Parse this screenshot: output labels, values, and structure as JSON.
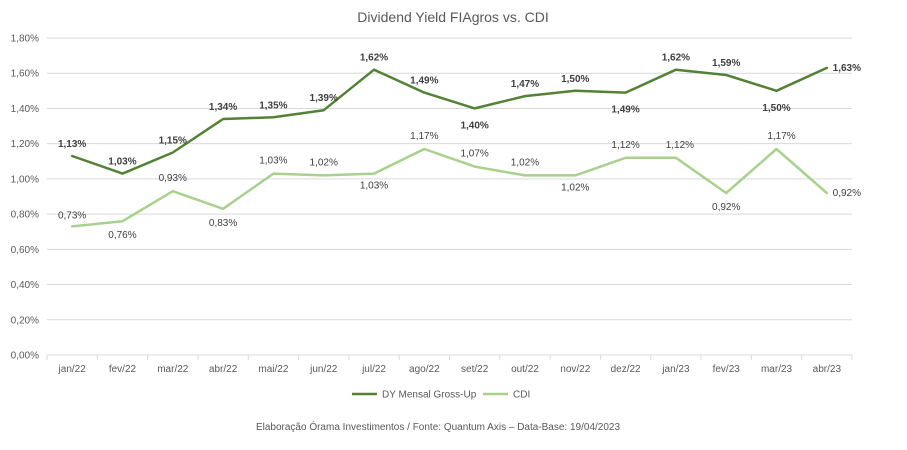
{
  "chart_data": {
    "type": "line",
    "title": "Dividend Yield FIAgros vs. CDI",
    "categories": [
      "jan/22",
      "fev/22",
      "mar/22",
      "abr/22",
      "mai/22",
      "jun/22",
      "jul/22",
      "ago/22",
      "set/22",
      "out/22",
      "nov/22",
      "dez/22",
      "jan/23",
      "fev/23",
      "mar/23",
      "abr/23"
    ],
    "y_ticks": [
      "0,00%",
      "0,20%",
      "0,40%",
      "0,60%",
      "0,80%",
      "1,00%",
      "1,20%",
      "1,40%",
      "1,60%",
      "1,80%"
    ],
    "ylim": [
      0,
      1.8
    ],
    "grid": true,
    "legend_position": "bottom",
    "series": [
      {
        "name": "DY Mensal Gross-Up",
        "color": "#548235",
        "values": [
          1.13,
          1.03,
          1.15,
          1.34,
          1.35,
          1.39,
          1.62,
          1.49,
          1.4,
          1.47,
          1.5,
          1.49,
          1.62,
          1.59,
          1.5,
          1.63
        ],
        "labels": [
          "1,13%",
          "1,03%",
          "1,15%",
          "1,34%",
          "1,35%",
          "1,39%",
          "1,62%",
          "1,49%",
          "1,40%",
          "1,47%",
          "1,50%",
          "1,49%",
          "1,62%",
          "1,59%",
          "1,50%",
          "1,63%"
        ]
      },
      {
        "name": "CDI",
        "color": "#a9d18e",
        "values": [
          0.73,
          0.76,
          0.93,
          0.83,
          1.03,
          1.02,
          1.03,
          1.17,
          1.07,
          1.02,
          1.02,
          1.12,
          1.12,
          0.92,
          1.17,
          0.92
        ],
        "labels": [
          "0,73%",
          "0,76%",
          "0,93%",
          "0,83%",
          "1,03%",
          "1,02%",
          "1,03%",
          "1,17%",
          "1,07%",
          "1,02%",
          "1,02%",
          "1,12%",
          "1,12%",
          "0,92%",
          "1,17%",
          "0,92%"
        ]
      }
    ],
    "source": "Elaboração Órama Investimentos / Fonte: Quantum Axis – Data-Base: 19/04/2023"
  }
}
